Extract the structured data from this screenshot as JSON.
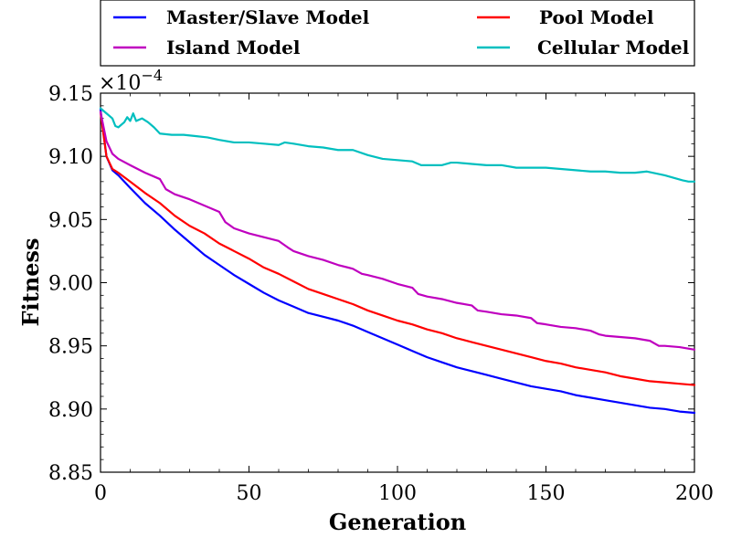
{
  "chart_data": {
    "type": "line",
    "title": "",
    "xlabel": "Generation",
    "ylabel": "Fitness",
    "y_scale_label": "×10",
    "y_scale_exponent": "−4",
    "xlim": [
      0,
      200
    ],
    "ylim": [
      8.85,
      9.15
    ],
    "xticks": [
      0,
      50,
      100,
      150,
      200
    ],
    "yticks": [
      8.85,
      8.9,
      8.95,
      9.0,
      9.05,
      9.1,
      9.15
    ],
    "ytick_labels": [
      "8.85",
      "8.90",
      "8.95",
      "9.00",
      "9.05",
      "9.10",
      "9.15"
    ],
    "legend_position": "top (above plot)",
    "grid": false,
    "series": [
      {
        "name": "Master/Slave Model",
        "color": "#0000ff",
        "points": [
          [
            0,
            9.137
          ],
          [
            2,
            9.1
          ],
          [
            4,
            9.089
          ],
          [
            6,
            9.085
          ],
          [
            10,
            9.075
          ],
          [
            15,
            9.063
          ],
          [
            20,
            9.053
          ],
          [
            25,
            9.042
          ],
          [
            30,
            9.032
          ],
          [
            35,
            9.022
          ],
          [
            40,
            9.014
          ],
          [
            45,
            9.006
          ],
          [
            50,
            8.999
          ],
          [
            55,
            8.992
          ],
          [
            60,
            8.986
          ],
          [
            65,
            8.981
          ],
          [
            70,
            8.976
          ],
          [
            75,
            8.973
          ],
          [
            80,
            8.97
          ],
          [
            85,
            8.966
          ],
          [
            90,
            8.961
          ],
          [
            95,
            8.956
          ],
          [
            100,
            8.951
          ],
          [
            105,
            8.946
          ],
          [
            110,
            8.941
          ],
          [
            115,
            8.937
          ],
          [
            120,
            8.933
          ],
          [
            125,
            8.93
          ],
          [
            130,
            8.927
          ],
          [
            135,
            8.924
          ],
          [
            140,
            8.921
          ],
          [
            145,
            8.918
          ],
          [
            150,
            8.916
          ],
          [
            155,
            8.914
          ],
          [
            160,
            8.911
          ],
          [
            165,
            8.909
          ],
          [
            170,
            8.907
          ],
          [
            175,
            8.905
          ],
          [
            180,
            8.903
          ],
          [
            185,
            8.901
          ],
          [
            190,
            8.9
          ],
          [
            195,
            8.898
          ],
          [
            200,
            8.897
          ]
        ]
      },
      {
        "name": "Pool Model",
        "color": "#ff0000",
        "points": [
          [
            0,
            9.135
          ],
          [
            2,
            9.1
          ],
          [
            4,
            9.09
          ],
          [
            6,
            9.087
          ],
          [
            10,
            9.08
          ],
          [
            15,
            9.071
          ],
          [
            20,
            9.063
          ],
          [
            25,
            9.053
          ],
          [
            30,
            9.045
          ],
          [
            35,
            9.039
          ],
          [
            40,
            9.031
          ],
          [
            45,
            9.025
          ],
          [
            50,
            9.019
          ],
          [
            55,
            9.012
          ],
          [
            60,
            9.007
          ],
          [
            65,
            9.001
          ],
          [
            70,
            8.995
          ],
          [
            75,
            8.991
          ],
          [
            80,
            8.987
          ],
          [
            85,
            8.983
          ],
          [
            90,
            8.978
          ],
          [
            95,
            8.974
          ],
          [
            100,
            8.97
          ],
          [
            105,
            8.967
          ],
          [
            110,
            8.963
          ],
          [
            115,
            8.96
          ],
          [
            120,
            8.956
          ],
          [
            125,
            8.953
          ],
          [
            130,
            8.95
          ],
          [
            135,
            8.947
          ],
          [
            140,
            8.944
          ],
          [
            145,
            8.941
          ],
          [
            150,
            8.938
          ],
          [
            155,
            8.936
          ],
          [
            160,
            8.933
          ],
          [
            165,
            8.931
          ],
          [
            170,
            8.929
          ],
          [
            175,
            8.926
          ],
          [
            180,
            8.924
          ],
          [
            185,
            8.922
          ],
          [
            190,
            8.921
          ],
          [
            195,
            8.92
          ],
          [
            200,
            8.919
          ]
        ]
      },
      {
        "name": "Island Model",
        "color": "#bf00bf",
        "points": [
          [
            0,
            9.135
          ],
          [
            2,
            9.112
          ],
          [
            4,
            9.102
          ],
          [
            6,
            9.098
          ],
          [
            10,
            9.093
          ],
          [
            15,
            9.087
          ],
          [
            20,
            9.082
          ],
          [
            22,
            9.074
          ],
          [
            25,
            9.07
          ],
          [
            30,
            9.066
          ],
          [
            35,
            9.061
          ],
          [
            40,
            9.056
          ],
          [
            42,
            9.048
          ],
          [
            45,
            9.043
          ],
          [
            50,
            9.039
          ],
          [
            55,
            9.036
          ],
          [
            60,
            9.033
          ],
          [
            63,
            9.028
          ],
          [
            65,
            9.025
          ],
          [
            70,
            9.021
          ],
          [
            75,
            9.018
          ],
          [
            80,
            9.014
          ],
          [
            85,
            9.011
          ],
          [
            88,
            9.007
          ],
          [
            90,
            9.006
          ],
          [
            95,
            9.003
          ],
          [
            100,
            8.999
          ],
          [
            105,
            8.996
          ],
          [
            107,
            8.991
          ],
          [
            110,
            8.989
          ],
          [
            115,
            8.987
          ],
          [
            120,
            8.984
          ],
          [
            125,
            8.982
          ],
          [
            127,
            8.978
          ],
          [
            130,
            8.977
          ],
          [
            135,
            8.975
          ],
          [
            140,
            8.974
          ],
          [
            145,
            8.972
          ],
          [
            147,
            8.968
          ],
          [
            150,
            8.967
          ],
          [
            155,
            8.965
          ],
          [
            160,
            8.964
          ],
          [
            165,
            8.962
          ],
          [
            168,
            8.959
          ],
          [
            170,
            8.958
          ],
          [
            175,
            8.957
          ],
          [
            180,
            8.956
          ],
          [
            185,
            8.954
          ],
          [
            188,
            8.95
          ],
          [
            190,
            8.95
          ],
          [
            195,
            8.949
          ],
          [
            200,
            8.947
          ]
        ]
      },
      {
        "name": "Cellular Model",
        "color": "#00bfbf",
        "points": [
          [
            0,
            9.138
          ],
          [
            2,
            9.134
          ],
          [
            4,
            9.13
          ],
          [
            5,
            9.124
          ],
          [
            6,
            9.123
          ],
          [
            8,
            9.127
          ],
          [
            9,
            9.131
          ],
          [
            10,
            9.128
          ],
          [
            11,
            9.134
          ],
          [
            12,
            9.128
          ],
          [
            14,
            9.13
          ],
          [
            16,
            9.127
          ],
          [
            18,
            9.123
          ],
          [
            20,
            9.118
          ],
          [
            24,
            9.117
          ],
          [
            28,
            9.117
          ],
          [
            32,
            9.116
          ],
          [
            36,
            9.115
          ],
          [
            40,
            9.113
          ],
          [
            45,
            9.111
          ],
          [
            50,
            9.111
          ],
          [
            55,
            9.11
          ],
          [
            60,
            9.109
          ],
          [
            62,
            9.111
          ],
          [
            65,
            9.11
          ],
          [
            70,
            9.108
          ],
          [
            75,
            9.107
          ],
          [
            80,
            9.105
          ],
          [
            85,
            9.105
          ],
          [
            90,
            9.101
          ],
          [
            95,
            9.098
          ],
          [
            100,
            9.097
          ],
          [
            105,
            9.096
          ],
          [
            108,
            9.093
          ],
          [
            110,
            9.093
          ],
          [
            115,
            9.093
          ],
          [
            118,
            9.095
          ],
          [
            120,
            9.095
          ],
          [
            125,
            9.094
          ],
          [
            130,
            9.093
          ],
          [
            135,
            9.093
          ],
          [
            140,
            9.091
          ],
          [
            145,
            9.091
          ],
          [
            150,
            9.091
          ],
          [
            155,
            9.09
          ],
          [
            160,
            9.089
          ],
          [
            165,
            9.088
          ],
          [
            170,
            9.088
          ],
          [
            175,
            9.087
          ],
          [
            180,
            9.087
          ],
          [
            184,
            9.088
          ],
          [
            188,
            9.086
          ],
          [
            190,
            9.085
          ],
          [
            193,
            9.083
          ],
          [
            196,
            9.081
          ],
          [
            198,
            9.08
          ],
          [
            200,
            9.08
          ]
        ]
      }
    ]
  }
}
